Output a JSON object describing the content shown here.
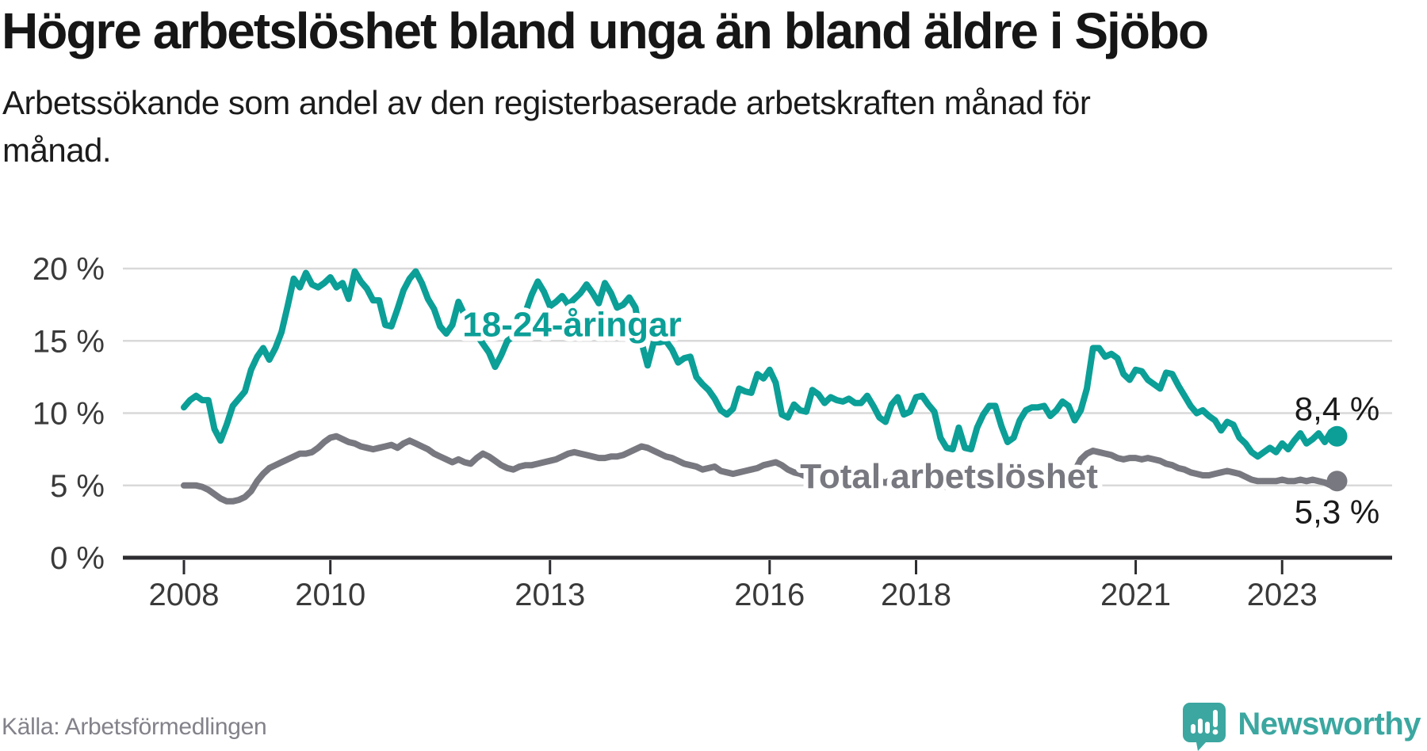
{
  "header": {
    "title": "Högre arbetslöshet bland unga än bland äldre i Sjöbo",
    "subtitle": "Arbetssökande som andel av den registerbaserade arbetskraften månad för månad."
  },
  "footer": {
    "source": "Källa: Arbetsförmedlingen",
    "brand": "Newsworthy"
  },
  "colors": {
    "youth": "#0b9f97",
    "total": "#787880",
    "axis": "#2d2d31",
    "grid": "#d9d9d9",
    "text": "#1a1a1a",
    "tick_text": "#3a3a3a",
    "muted": "#83828a",
    "brand_teal": "#3ba7a0"
  },
  "chart_data": {
    "type": "line",
    "title": "Högre arbetslöshet bland unga än bland äldre i Sjöbo",
    "subtitle": "Arbetssökande som andel av den registerbaserade arbetskraften månad för månad.",
    "source": "Källa: Arbetsförmedlingen",
    "unit": "%",
    "frequency": "monthly",
    "x_start": "2008-01",
    "x_end": "2023-10",
    "xlim_years": [
      2007.17,
      2024.5
    ],
    "ylim": [
      0,
      21
    ],
    "grid": "horizontal",
    "legend_position": "inline-labels",
    "y_ticks": [
      {
        "value": 0,
        "label": "0 %"
      },
      {
        "value": 5,
        "label": "5 %"
      },
      {
        "value": 10,
        "label": "10 %"
      },
      {
        "value": 15,
        "label": "15 %"
      },
      {
        "value": 20,
        "label": "20 %"
      }
    ],
    "x_ticks": [
      {
        "year": 2008,
        "label": "2008"
      },
      {
        "year": 2010,
        "label": "2010"
      },
      {
        "year": 2013,
        "label": "2013"
      },
      {
        "year": 2016,
        "label": "2016"
      },
      {
        "year": 2018,
        "label": "2018"
      },
      {
        "year": 2021,
        "label": "2021"
      },
      {
        "year": 2023,
        "label": "2023"
      }
    ],
    "series": [
      {
        "name": "18-24-åringar",
        "color": "#0b9f97",
        "end_label": "8,4 %",
        "end_label_side": "above",
        "label_anchor": {
          "year": 2013.3,
          "value": 16.15
        },
        "values": [
          10.4,
          10.9,
          11.2,
          10.9,
          10.9,
          8.9,
          8.1,
          9.2,
          10.5,
          11.0,
          11.5,
          13.0,
          13.9,
          14.5,
          13.7,
          14.5,
          15.6,
          17.4,
          19.3,
          18.7,
          19.7,
          18.9,
          18.7,
          19.0,
          19.4,
          18.7,
          19.0,
          17.9,
          19.8,
          19.1,
          18.6,
          17.8,
          17.8,
          16.1,
          16.0,
          17.2,
          18.5,
          19.3,
          19.8,
          19.0,
          17.9,
          17.2,
          16.0,
          15.5,
          16.1,
          17.7,
          16.8,
          15.9,
          15.4,
          14.8,
          14.2,
          13.2,
          14.0,
          15.0,
          15.3,
          16.0,
          17.0,
          18.2,
          19.1,
          18.4,
          17.4,
          17.7,
          18.1,
          17.5,
          17.9,
          18.3,
          18.9,
          18.3,
          17.6,
          19.0,
          18.3,
          17.3,
          17.5,
          18.0,
          17.3,
          14.9,
          13.3,
          14.9,
          14.9,
          15.0,
          14.4,
          13.5,
          13.8,
          13.9,
          12.5,
          12.0,
          11.6,
          11.0,
          10.2,
          9.9,
          10.3,
          11.7,
          11.5,
          11.4,
          12.7,
          12.4,
          13.0,
          12.1,
          9.9,
          9.7,
          10.6,
          10.2,
          10.1,
          11.6,
          11.3,
          10.7,
          11.1,
          10.9,
          10.8,
          11.0,
          10.7,
          10.7,
          11.2,
          10.5,
          9.7,
          9.4,
          10.6,
          11.1,
          9.9,
          10.1,
          11.1,
          11.2,
          10.6,
          10.1,
          8.3,
          7.6,
          7.5,
          9.0,
          7.6,
          7.5,
          9.0,
          9.9,
          10.5,
          10.5,
          9.1,
          8.0,
          8.3,
          9.5,
          10.2,
          10.4,
          10.4,
          10.5,
          9.8,
          10.2,
          10.8,
          10.5,
          9.5,
          10.2,
          11.7,
          14.5,
          14.5,
          13.9,
          14.1,
          13.8,
          12.7,
          12.3,
          13.0,
          12.9,
          12.3,
          12.0,
          11.7,
          12.8,
          12.7,
          11.9,
          11.2,
          10.5,
          10.0,
          10.2,
          9.8,
          9.5,
          8.8,
          9.4,
          9.2,
          8.3,
          7.9,
          7.3,
          7.0,
          7.3,
          7.6,
          7.3,
          7.9,
          7.5,
          8.1,
          8.6,
          7.9,
          8.2,
          8.6,
          8.0,
          8.7,
          8.4
        ]
      },
      {
        "name": "Total arbetslöshet",
        "color": "#787880",
        "end_label": "5,3 %",
        "end_label_side": "below",
        "label_anchor": {
          "year": 2018.45,
          "value": 5.65
        },
        "values": [
          5.0,
          5.0,
          5.0,
          4.9,
          4.7,
          4.4,
          4.1,
          3.9,
          3.9,
          4.0,
          4.2,
          4.6,
          5.3,
          5.8,
          6.2,
          6.4,
          6.6,
          6.8,
          7.0,
          7.2,
          7.2,
          7.3,
          7.6,
          8.0,
          8.3,
          8.4,
          8.2,
          8.0,
          7.9,
          7.7,
          7.6,
          7.5,
          7.6,
          7.7,
          7.8,
          7.6,
          7.9,
          8.1,
          7.9,
          7.7,
          7.5,
          7.2,
          7.0,
          6.8,
          6.6,
          6.8,
          6.6,
          6.5,
          6.9,
          7.2,
          7.0,
          6.7,
          6.4,
          6.2,
          6.1,
          6.3,
          6.4,
          6.4,
          6.5,
          6.6,
          6.7,
          6.8,
          7.0,
          7.2,
          7.3,
          7.2,
          7.1,
          7.0,
          6.9,
          6.9,
          7.0,
          7.0,
          7.1,
          7.3,
          7.5,
          7.7,
          7.6,
          7.4,
          7.2,
          7.0,
          6.9,
          6.7,
          6.5,
          6.4,
          6.3,
          6.1,
          6.2,
          6.3,
          6.0,
          5.9,
          5.8,
          5.9,
          6.0,
          6.1,
          6.2,
          6.4,
          6.5,
          6.6,
          6.4,
          6.1,
          5.9,
          5.8,
          5.6,
          5.7,
          5.8,
          5.7,
          5.6,
          5.6,
          5.6,
          5.7,
          5.6,
          5.5,
          5.6,
          5.5,
          5.3,
          5.2,
          5.4,
          5.5,
          5.3,
          5.2,
          5.4,
          5.5,
          5.3,
          5.2,
          5.0,
          4.9,
          5.0,
          5.2,
          5.1,
          5.0,
          5.1,
          5.2,
          5.3,
          5.2,
          5.1,
          5.0,
          5.1,
          5.2,
          5.4,
          5.5,
          5.4,
          5.5,
          5.6,
          5.8,
          5.9,
          5.8,
          6.0,
          6.8,
          7.2,
          7.4,
          7.3,
          7.2,
          7.1,
          6.9,
          6.8,
          6.9,
          6.9,
          6.8,
          6.9,
          6.8,
          6.7,
          6.5,
          6.4,
          6.2,
          6.1,
          5.9,
          5.8,
          5.7,
          5.7,
          5.8,
          5.9,
          6.0,
          5.9,
          5.8,
          5.6,
          5.4,
          5.3,
          5.3,
          5.3,
          5.3,
          5.4,
          5.3,
          5.3,
          5.4,
          5.3,
          5.4,
          5.3,
          5.2,
          5.0,
          5.3
        ]
      }
    ]
  }
}
